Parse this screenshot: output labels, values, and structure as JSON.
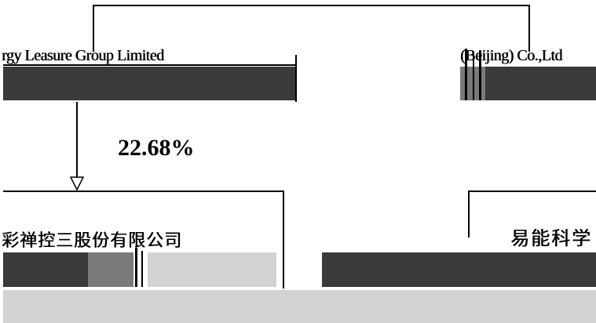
{
  "top_box": {
    "label_left": "rgy Leasure Group Limited",
    "label_right": "(Beijing) Co.,Ltd"
  },
  "edge": {
    "percentage": "22.68%"
  },
  "bottom_left_box": {
    "label": "彩禅控三股份有限公司"
  },
  "bottom_right_box": {
    "label": "易能科学"
  }
}
